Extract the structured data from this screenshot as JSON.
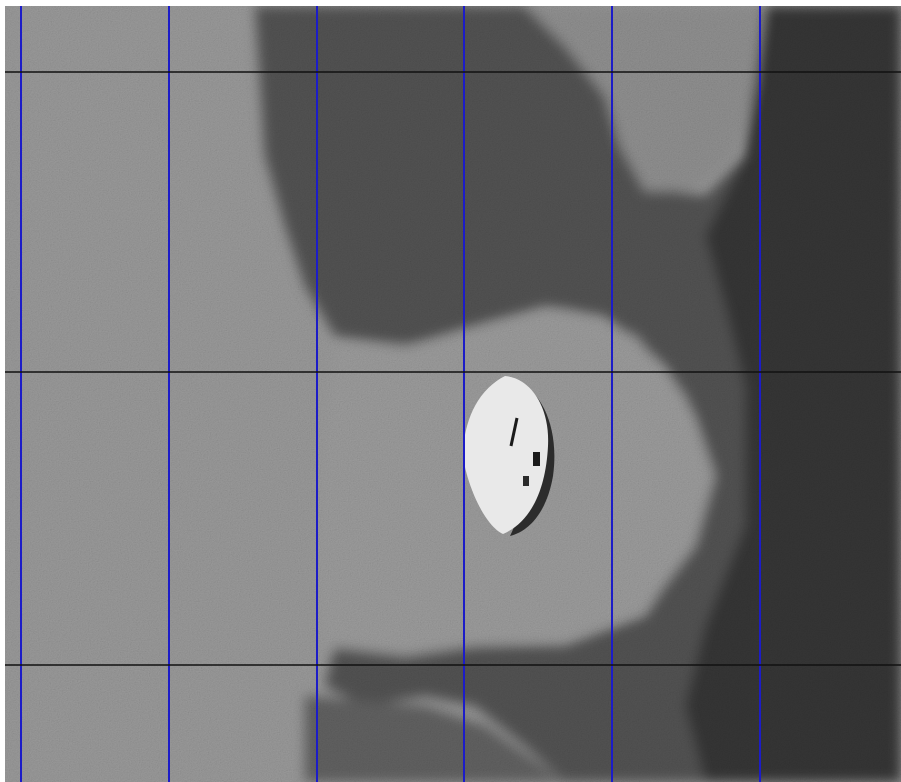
{
  "image": {
    "description_icon": "sonar-seafloor-image",
    "colors": {
      "light_sediment": "#c6c6c6",
      "light_sediment_pale": "#d4d4d4",
      "dark_sediment": "#4a4a4a",
      "dark_sediment_deep": "#333333",
      "mid_sediment": "#8a8a8a",
      "object_highlight": "#e9e9e9",
      "object_edge": "#1a1a1a"
    }
  },
  "grid": {
    "vertical_line_color": "#1c1cc8",
    "horizontal_line_color": "#111111",
    "vertical_line_count": 6,
    "horizontal_line_count": 3
  }
}
